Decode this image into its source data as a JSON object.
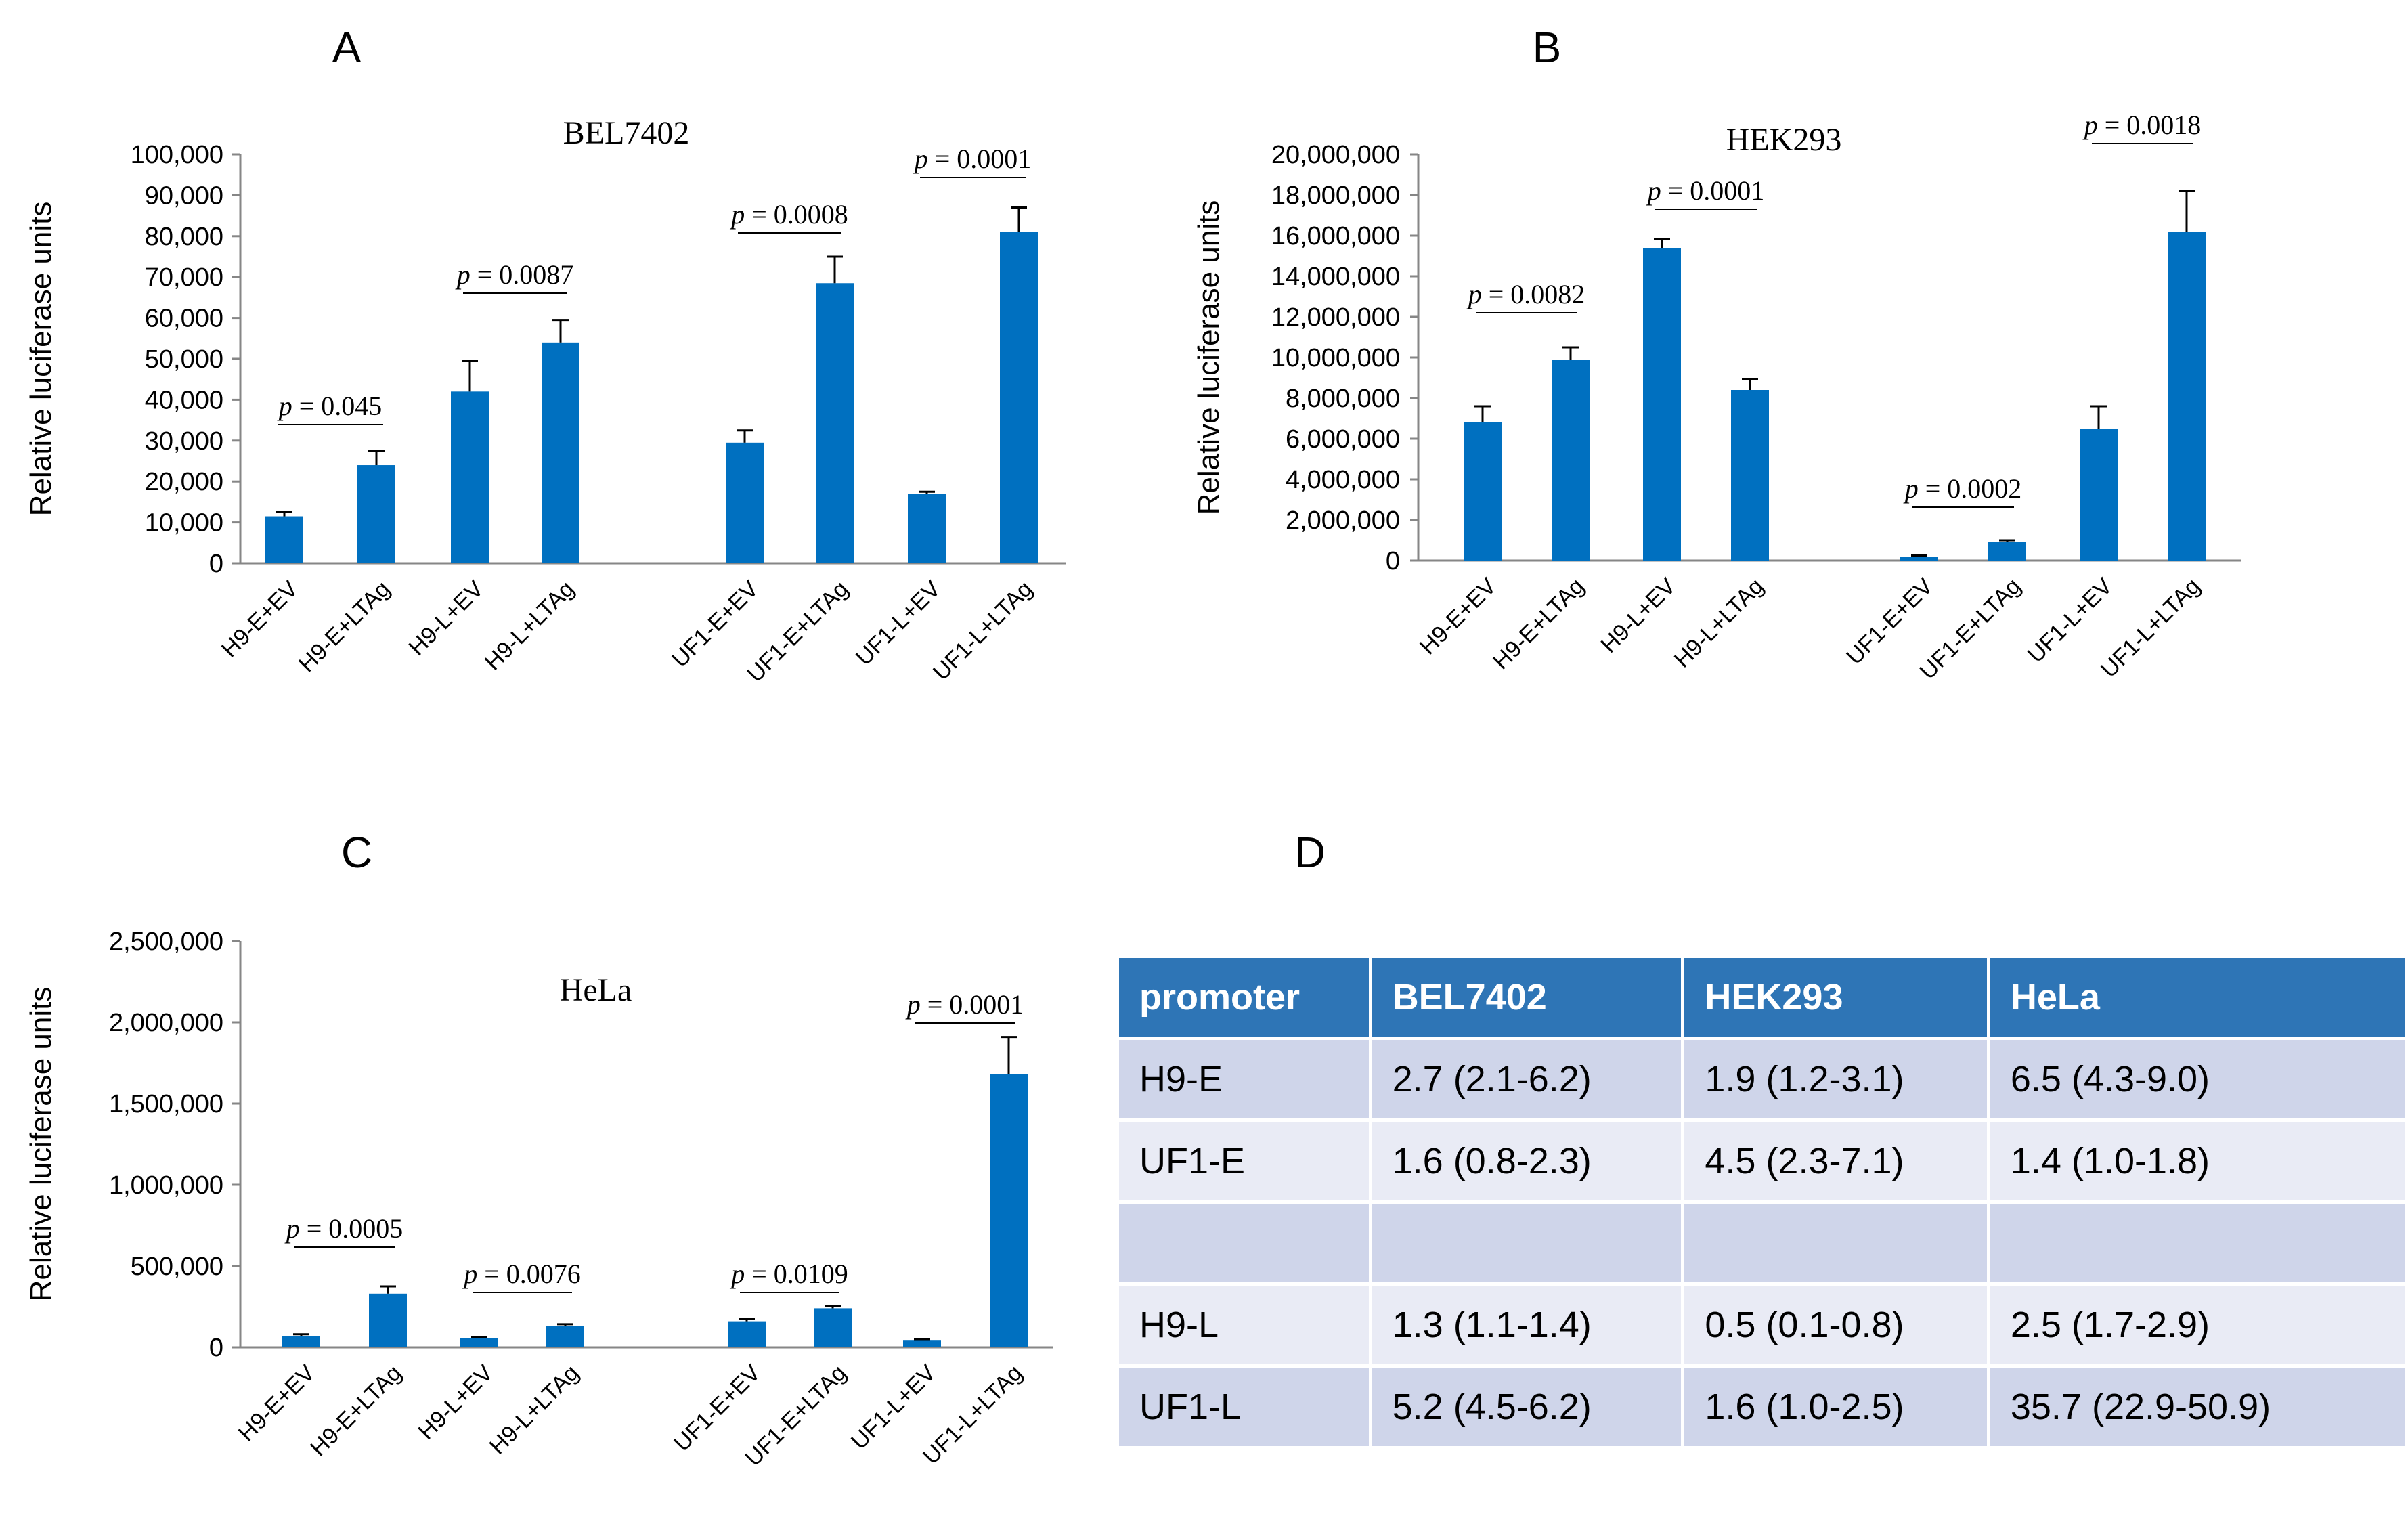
{
  "panel_letters": [
    "A",
    "B",
    "C",
    "D"
  ],
  "chart_data": [
    {
      "type": "bar",
      "title": "BEL7402",
      "ylabel": "Relative luciferase units",
      "xlabel": "",
      "ylim": [
        0,
        100000
      ],
      "yticks": [
        "0",
        "10,000",
        "20,000",
        "30,000",
        "40,000",
        "50,000",
        "60,000",
        "70,000",
        "80,000",
        "90,000",
        "100,000"
      ],
      "categories": [
        "H9-E+EV",
        "H9-E+LTAg",
        "H9-L+EV",
        "H9-L+LTAg",
        "UF1-E+EV",
        "UF1-E+LTAg",
        "UF1-L+EV",
        "UF1-L+LTAg"
      ],
      "values": [
        11500,
        24000,
        42000,
        54000,
        29500,
        68500,
        17000,
        81000
      ],
      "errors": [
        1000,
        3500,
        7500,
        5500,
        3000,
        6500,
        500,
        6000
      ],
      "pvalues": [
        {
          "between": [
            0,
            1
          ],
          "text": "= 0.045"
        },
        {
          "between": [
            2,
            3
          ],
          "text": "= 0.0087"
        },
        {
          "between": [
            4,
            5
          ],
          "text": "= 0.0008"
        },
        {
          "between": [
            6,
            7
          ],
          "text": "= 0.0001"
        }
      ]
    },
    {
      "type": "bar",
      "title": "HEK293",
      "ylabel": "Relative luciferase units",
      "xlabel": "",
      "ylim": [
        0,
        20000000
      ],
      "yticks": [
        "0",
        "2,000,000",
        "4,000,000",
        "6,000,000",
        "8,000,000",
        "10,000,000",
        "12,000,000",
        "14,000,000",
        "16,000,000",
        "18,000,000",
        "20,000,000"
      ],
      "categories": [
        "H9-E+EV",
        "H9-E+LTAg",
        "H9-L+EV",
        "H9-L+LTAg",
        "UF1-E+EV",
        "UF1-E+LTAg",
        "UF1-L+EV",
        "UF1-L+LTAg"
      ],
      "values": [
        6800000,
        9900000,
        15400000,
        8400000,
        200000,
        900000,
        6500000,
        16200000
      ],
      "errors": [
        800000,
        600000,
        450000,
        550000,
        50000,
        100000,
        1100000,
        2000000
      ],
      "pvalues": [
        {
          "between": [
            0,
            1
          ],
          "text": "= 0.0082"
        },
        {
          "between": [
            2,
            3
          ],
          "text": "= 0.0001"
        },
        {
          "between": [
            4,
            5
          ],
          "text": "= 0.0002"
        },
        {
          "between": [
            6,
            7
          ],
          "text": "= 0.0018"
        }
      ]
    },
    {
      "type": "bar",
      "title": "HeLa",
      "ylabel": "Relative luciferase units",
      "xlabel": "",
      "ylim": [
        0,
        2500000
      ],
      "yticks": [
        "0",
        "500,000",
        "1,000,000",
        "1,500,000",
        "2,000,000",
        "2,500,000"
      ],
      "categories": [
        "H9-E+EV",
        "H9-E+LTAg",
        "H9-L+EV",
        "H9-L+LTAg",
        "UF1-E+EV",
        "UF1-E+LTAg",
        "UF1-L+EV",
        "UF1-L+LTAg"
      ],
      "values": [
        70000,
        330000,
        55000,
        130000,
        160000,
        240000,
        45000,
        1680000
      ],
      "errors": [
        10000,
        45000,
        8000,
        12000,
        15000,
        12000,
        5000,
        230000
      ],
      "pvalues": [
        {
          "between": [
            0,
            1
          ],
          "text": "= 0.0005"
        },
        {
          "between": [
            2,
            3
          ],
          "text": "= 0.0076"
        },
        {
          "between": [
            4,
            5
          ],
          "text": "= 0.0109"
        },
        {
          "between": [
            6,
            7
          ],
          "text": "= 0.0001"
        }
      ]
    },
    {
      "type": "table",
      "headers": [
        "promoter",
        "BEL7402",
        "HEK293",
        "HeLa"
      ],
      "rows": [
        [
          "H9-E",
          "2.7 (2.1-6.2)",
          "1.9 (1.2-3.1)",
          "6.5 (4.3-9.0)"
        ],
        [
          "UF1-E",
          "1.6 (0.8-2.3)",
          "4.5 (2.3-7.1)",
          "1.4 (1.0-1.8)"
        ],
        [
          "",
          "",
          "",
          ""
        ],
        [
          "H9-L",
          "1.3 (1.1-1.4)",
          "0.5 (0.1-0.8)",
          "2.5 (1.7-2.9)"
        ],
        [
          "UF1-L",
          "5.2 (4.5-6.2)",
          "1.6 (1.0-2.5)",
          "35.7 (22.9-50.9)"
        ]
      ]
    }
  ],
  "colors": {
    "bar": "#0070c0",
    "axis": "#868686",
    "table_header": "#2e75b6",
    "table_row_odd": "#cfd5ea",
    "table_row_even": "#e9ebf5"
  }
}
